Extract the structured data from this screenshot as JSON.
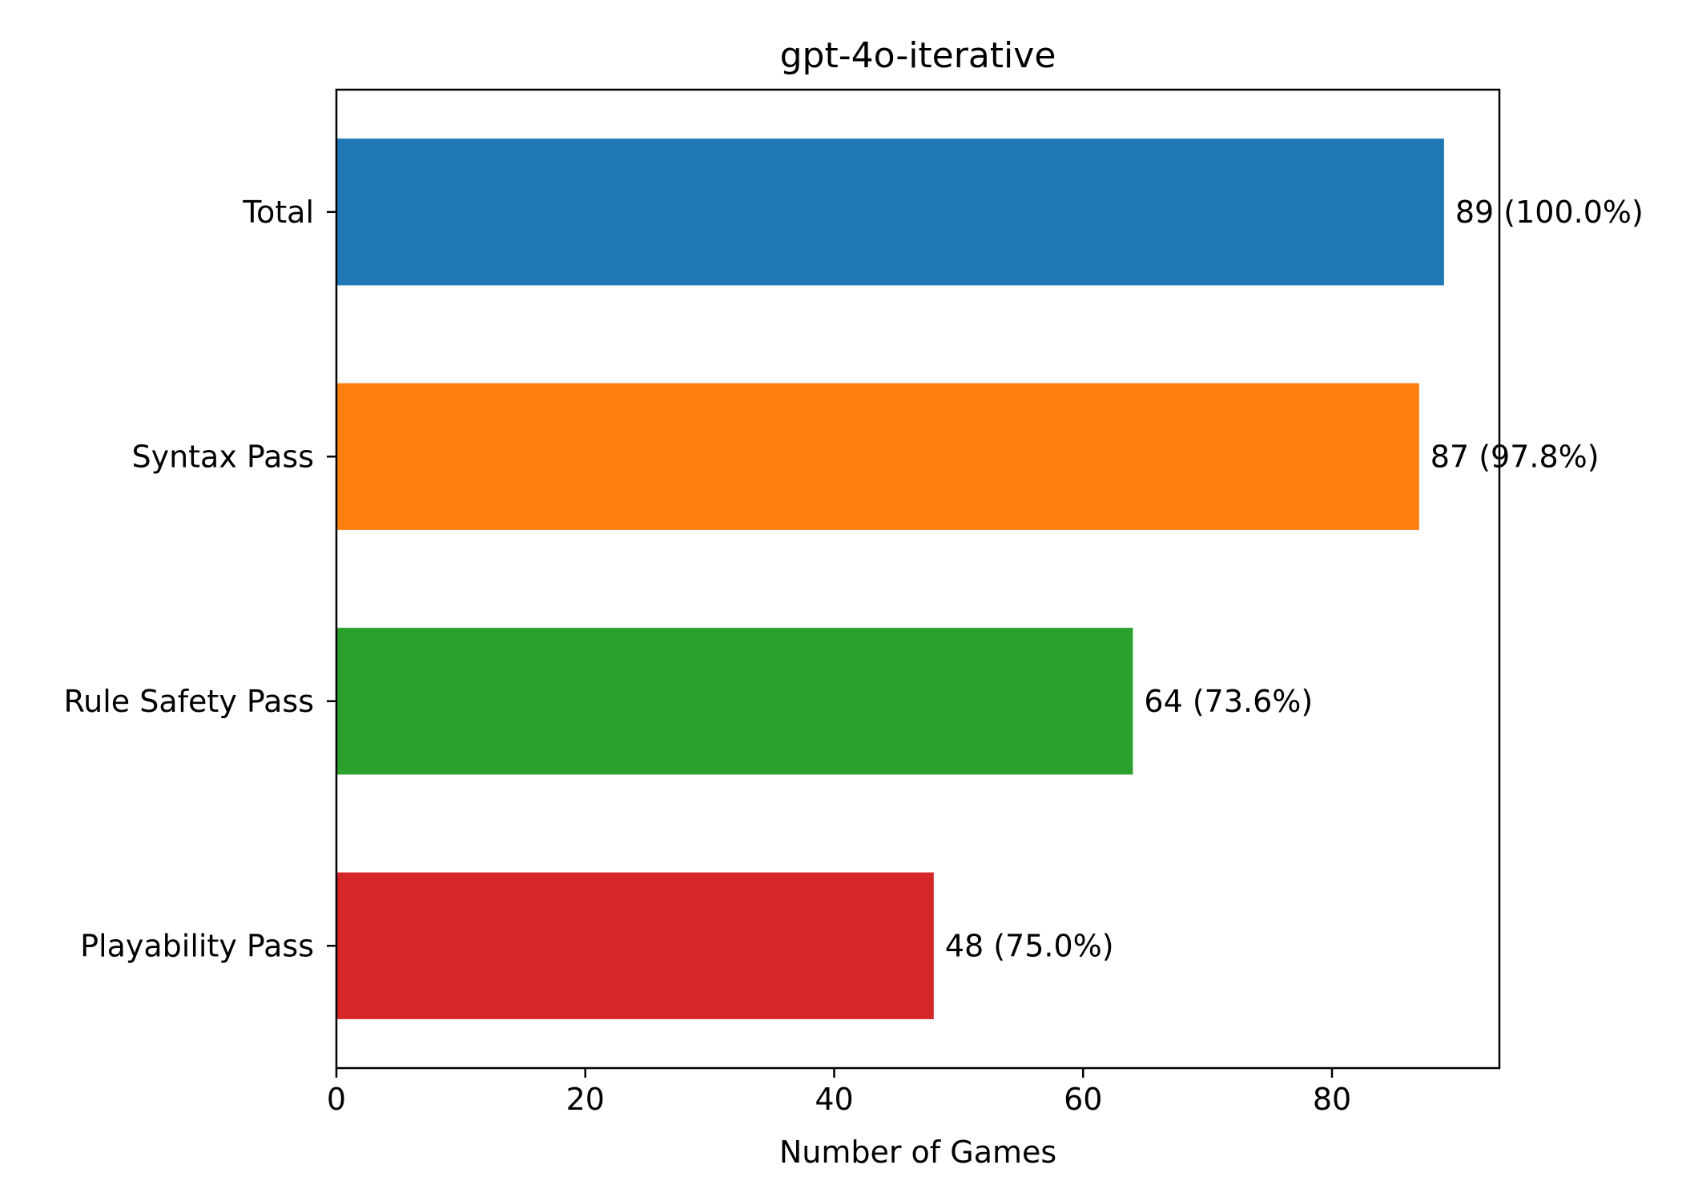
{
  "chart_data": {
    "type": "bar",
    "orientation": "horizontal",
    "title": "gpt-4o-iterative",
    "xlabel": "Number of Games",
    "ylabel": "",
    "xlim": [
      0,
      93.45
    ],
    "xticks": [
      0,
      20,
      40,
      60,
      80
    ],
    "grid": false,
    "legend": "none",
    "categories": [
      "Total",
      "Syntax Pass",
      "Rule Safety Pass",
      "Playability Pass"
    ],
    "values": [
      89,
      87,
      64,
      48
    ],
    "data_labels": [
      "89 (100.0%)",
      "87 (97.8%)",
      "64 (73.6%)",
      "48 (75.0%)"
    ],
    "colors": [
      "#1f77b4",
      "#ff7f0e",
      "#2ca02c",
      "#d62728"
    ]
  }
}
